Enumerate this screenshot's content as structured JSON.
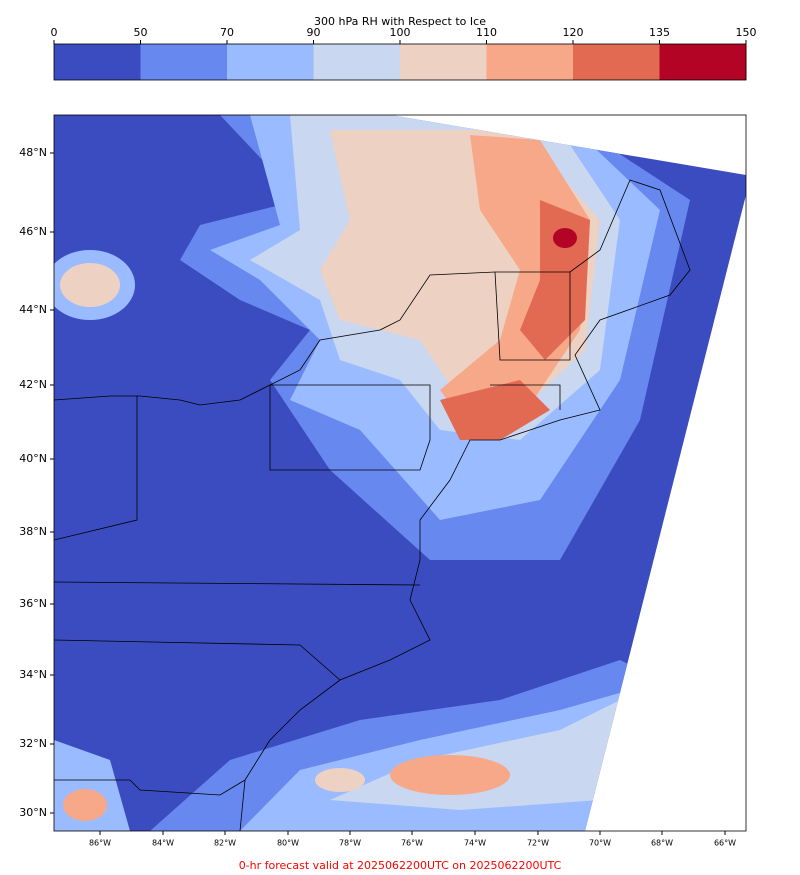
{
  "colorbar": {
    "title": "300 hPa RH with Respect to Ice",
    "ticks": [
      0,
      50,
      70,
      90,
      100,
      110,
      120,
      135,
      150
    ],
    "colors": [
      "#3b4cc0",
      "#6788ee",
      "#9abbff",
      "#c9d7f0",
      "#edd1c2",
      "#f7a889",
      "#e26952",
      "#b40426"
    ]
  },
  "map": {
    "latitude_labels": [
      "48°N",
      "46°N",
      "44°N",
      "42°N",
      "40°N",
      "38°N",
      "36°N",
      "34°N",
      "32°N",
      "30°N"
    ],
    "longitude_labels": [
      "86°W",
      "84°W",
      "82°W",
      "80°W",
      "78°W",
      "76°W",
      "74°W",
      "72°W",
      "70°W",
      "68°W",
      "66°W"
    ]
  },
  "footer": "0-hr forecast valid at 2025062200UTC on 2025062200UTC"
}
